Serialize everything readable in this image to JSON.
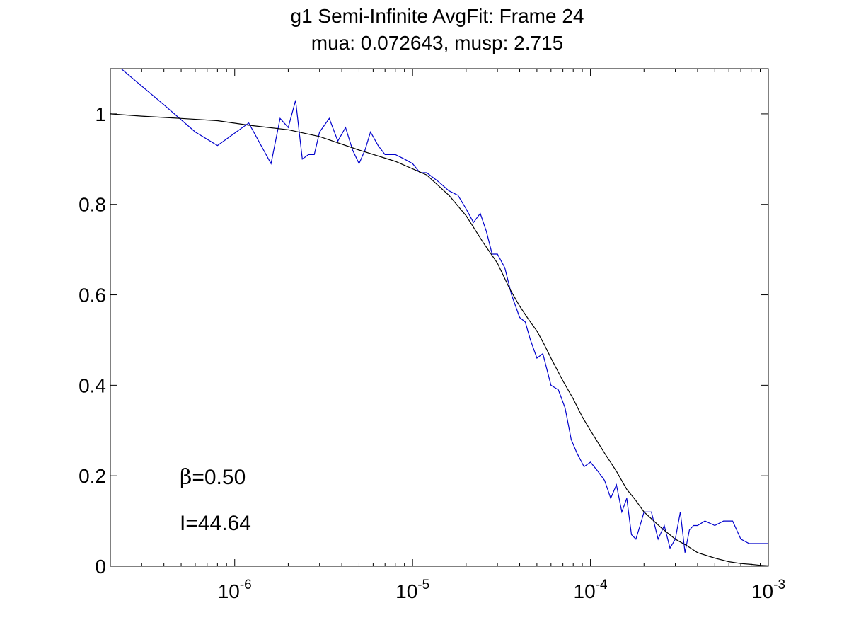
{
  "chart_data": {
    "type": "line",
    "title": "g1 Semi-Infinite AvgFit: Frame 24",
    "subtitle": "mua: 0.072643, musp: 2.715",
    "xlabel": "",
    "ylabel": "",
    "xscale": "log",
    "xlim": [
      2e-07,
      0.001
    ],
    "ylim": [
      0,
      1.1
    ],
    "grid": false,
    "x_ticks": [
      {
        "base": "10",
        "exp": "-6",
        "value": 1e-06
      },
      {
        "base": "10",
        "exp": "-5",
        "value": 1e-05
      },
      {
        "base": "10",
        "exp": "-4",
        "value": 0.0001
      },
      {
        "base": "10",
        "exp": "-3",
        "value": 0.001
      }
    ],
    "y_ticks": [
      {
        "label": "0",
        "value": 0
      },
      {
        "label": "0.2",
        "value": 0.2
      },
      {
        "label": "0.4",
        "value": 0.4
      },
      {
        "label": "0.6",
        "value": 0.6
      },
      {
        "label": "0.8",
        "value": 0.8
      },
      {
        "label": "1",
        "value": 1
      }
    ],
    "series": [
      {
        "color": "#0000cc",
        "x": [
          2e-07,
          4e-07,
          6e-07,
          8e-07,
          1.2e-06,
          1.6e-06,
          1.8e-06,
          2e-06,
          2.2e-06,
          2.4e-06,
          2.6e-06,
          2.8e-06,
          3e-06,
          3.4e-06,
          3.8e-06,
          4.2e-06,
          4.6e-06,
          5e-06,
          5.4e-06,
          5.8e-06,
          6.4e-06,
          7e-06,
          8e-06,
          9e-06,
          1e-05,
          1.1e-05,
          1.2e-05,
          1.4e-05,
          1.6e-05,
          1.8e-05,
          2e-05,
          2.2e-05,
          2.4e-05,
          2.6e-05,
          2.8e-05,
          3e-05,
          3.3e-05,
          3.6e-05,
          4e-05,
          4.3e-05,
          4.6e-05,
          5e-05,
          5.4e-05,
          6e-05,
          6.6e-05,
          7.2e-05,
          7.8e-05,
          8.4e-05,
          9.2e-05,
          0.0001,
          0.00011,
          0.00012,
          0.00013,
          0.00014,
          0.00015,
          0.00016,
          0.00017,
          0.00018,
          0.00019,
          0.0002,
          0.00022,
          0.00024,
          0.00026,
          0.00028,
          0.0003,
          0.00032,
          0.00034,
          0.00036,
          0.00038,
          0.0004,
          0.00044,
          0.0005,
          0.00056,
          0.00063,
          0.0007,
          0.00078,
          0.00084,
          0.0009,
          0.001
        ],
        "y": [
          1.12,
          1.02,
          0.96,
          0.93,
          0.98,
          0.89,
          0.99,
          0.97,
          1.03,
          0.9,
          0.91,
          0.91,
          0.96,
          0.99,
          0.94,
          0.97,
          0.92,
          0.89,
          0.92,
          0.96,
          0.93,
          0.91,
          0.91,
          0.9,
          0.89,
          0.87,
          0.87,
          0.85,
          0.83,
          0.82,
          0.79,
          0.76,
          0.78,
          0.74,
          0.69,
          0.69,
          0.66,
          0.6,
          0.55,
          0.54,
          0.5,
          0.46,
          0.47,
          0.4,
          0.39,
          0.35,
          0.28,
          0.25,
          0.22,
          0.23,
          0.21,
          0.19,
          0.15,
          0.18,
          0.12,
          0.15,
          0.07,
          0.06,
          0.09,
          0.12,
          0.12,
          0.06,
          0.09,
          0.04,
          0.06,
          0.12,
          0.03,
          0.08,
          0.09,
          0.09,
          0.1,
          0.09,
          0.1,
          0.1,
          0.06,
          0.05,
          0.05,
          0.05,
          0.05
        ]
      },
      {
        "color": "#000000",
        "x": [
          2e-07,
          3e-07,
          5e-07,
          8e-07,
          1.2e-06,
          2e-06,
          3e-06,
          5e-06,
          8e-06,
          1.2e-05,
          1.6e-05,
          2e-05,
          2.5e-05,
          3e-05,
          3.5e-05,
          4e-05,
          4.5e-05,
          5e-05,
          5.5e-05,
          6e-05,
          7e-05,
          8e-05,
          9e-05,
          0.0001,
          0.00012,
          0.00014,
          0.00016,
          0.00018,
          0.0002,
          0.00025,
          0.0003,
          0.00035,
          0.0004,
          0.0005,
          0.0006,
          0.0007,
          0.0008,
          0.0009,
          0.001
        ],
        "y": [
          1.0,
          0.995,
          0.99,
          0.985,
          0.975,
          0.965,
          0.95,
          0.92,
          0.895,
          0.865,
          0.82,
          0.775,
          0.715,
          0.67,
          0.615,
          0.575,
          0.545,
          0.52,
          0.49,
          0.46,
          0.41,
          0.37,
          0.33,
          0.3,
          0.25,
          0.21,
          0.17,
          0.145,
          0.12,
          0.085,
          0.06,
          0.045,
          0.03,
          0.018,
          0.01,
          0.006,
          0.004,
          0.002,
          0.001
        ]
      }
    ],
    "annotations": [
      {
        "prefix": "β",
        "text": "=0.50"
      },
      {
        "prefix": "",
        "text": "I=44.64"
      }
    ]
  }
}
